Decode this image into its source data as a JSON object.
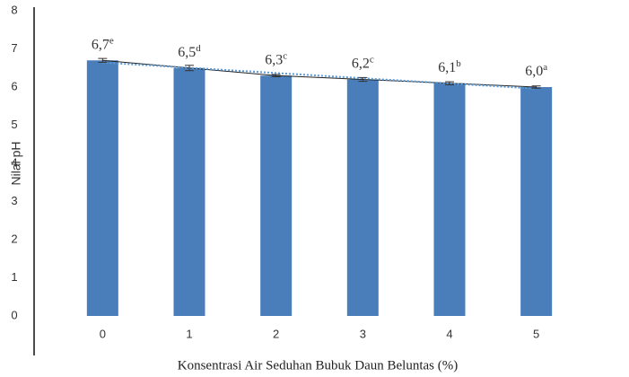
{
  "chart_data": {
    "type": "bar",
    "x_label": "Konsentrasi  Air Seduhan Bubuk Daun Beluntas  (%)",
    "y_label": "Nilai pH",
    "categories": [
      "0",
      "1",
      "2",
      "3",
      "4",
      "5"
    ],
    "values": [
      6.7,
      6.5,
      6.3,
      6.2,
      6.1,
      6.0
    ],
    "value_labels": [
      "6,7",
      "6,5",
      "6,3",
      "6,2",
      "6,1",
      "6,0"
    ],
    "letters": [
      "e",
      "d",
      "c",
      "c",
      "b",
      "a"
    ],
    "errors": [
      0.05,
      0.07,
      0.03,
      0.05,
      0.04,
      0.03
    ],
    "color": "#4a7ebb",
    "trendline": true,
    "ylim": [
      0,
      8
    ],
    "yticks": [
      0,
      1,
      2,
      3,
      4,
      5,
      6,
      7,
      8
    ],
    "grid": false
  }
}
